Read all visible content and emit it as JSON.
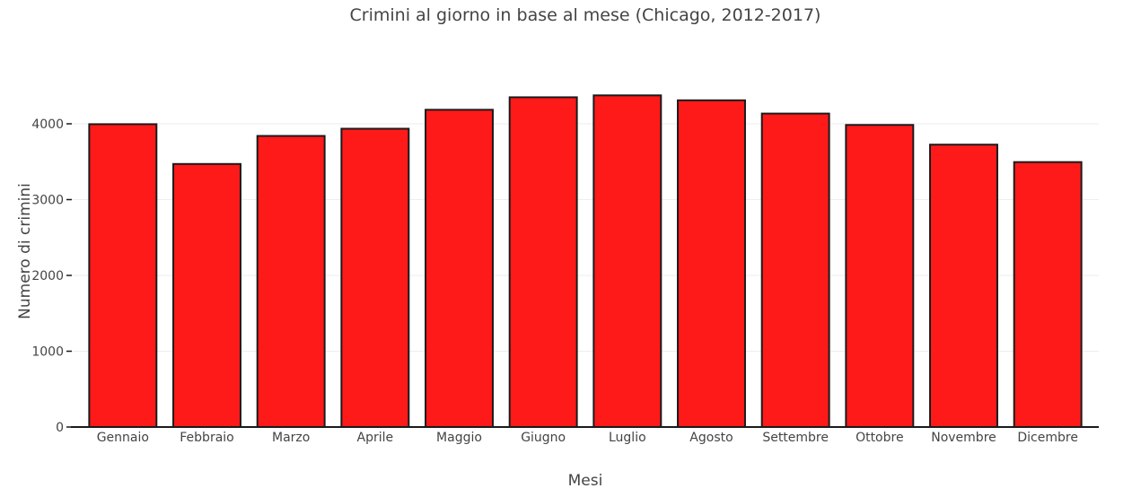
{
  "chart_data": {
    "type": "bar",
    "title": "Crimini al giorno in base al mese (Chicago, 2012-2017)",
    "xlabel": "Mesi",
    "ylabel": "Numero di crimini",
    "categories": [
      "Gennaio",
      "Febbraio",
      "Marzo",
      "Aprile",
      "Maggio",
      "Giugno",
      "Luglio",
      "Agosto",
      "Settembre",
      "Ottobre",
      "Novembre",
      "Dicembre"
    ],
    "values": [
      3995,
      3470,
      3840,
      3935,
      4185,
      4350,
      4375,
      4310,
      4135,
      3985,
      3725,
      3495
    ],
    "ylim": [
      0,
      4700
    ],
    "yticks": [
      0,
      1000,
      2000,
      3000,
      4000
    ],
    "grid": true,
    "bar_color": "#ff1a1a",
    "bar_outline": "#1a1a1a"
  }
}
